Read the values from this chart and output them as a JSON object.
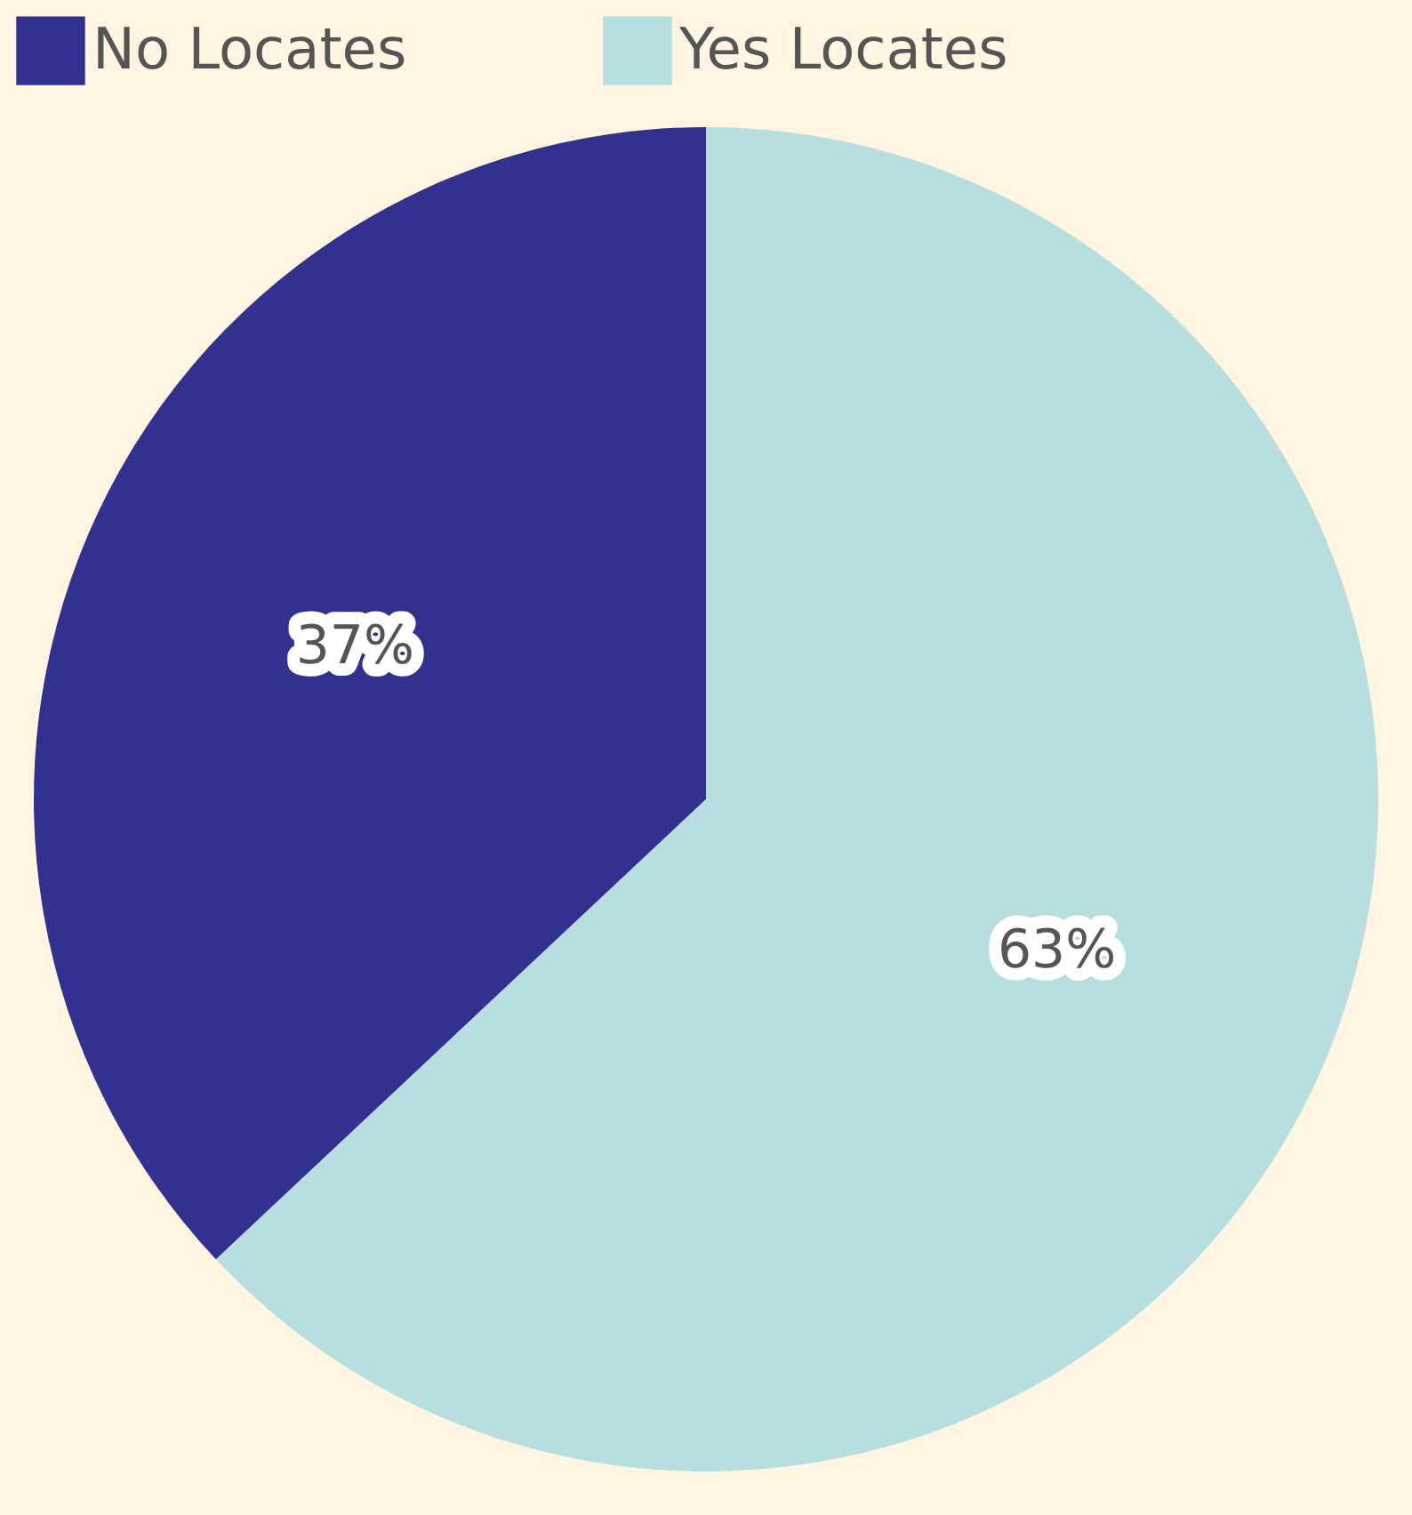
{
  "chart_data": {
    "type": "pie",
    "categories": [
      "No Locates",
      "Yes Locates"
    ],
    "values": [
      37,
      63
    ],
    "colors": [
      "#33318f",
      "#b8dfe0"
    ],
    "value_labels": [
      "37%",
      "63%"
    ],
    "legend": "top"
  }
}
